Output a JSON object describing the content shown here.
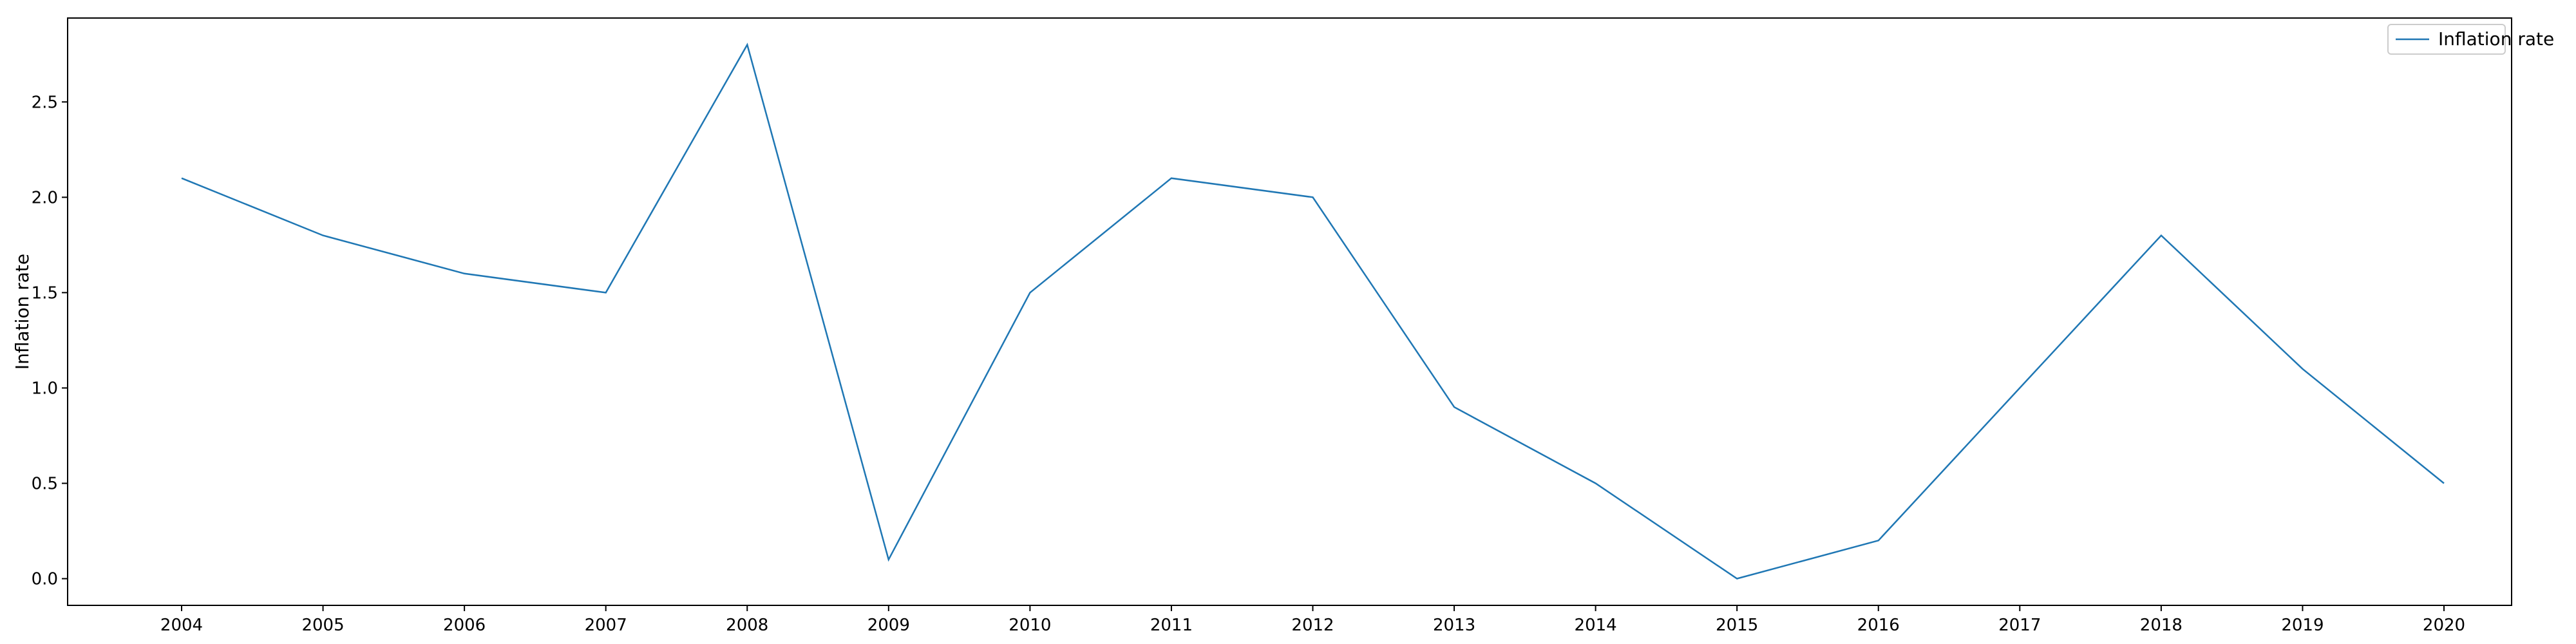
{
  "chart_data": {
    "type": "line",
    "title": "",
    "xlabel": "",
    "ylabel": "Inflation rate",
    "x": [
      "2004",
      "2005",
      "2006",
      "2007",
      "2008",
      "2009",
      "2010",
      "2011",
      "2012",
      "2013",
      "2014",
      "2015",
      "2016",
      "2017",
      "2018",
      "2019",
      "2020"
    ],
    "series": [
      {
        "name": "Inflation rate",
        "color": "#1f77b4",
        "values": [
          2.1,
          1.8,
          1.6,
          1.5,
          2.8,
          0.1,
          1.5,
          2.1,
          2.0,
          0.9,
          0.5,
          0.0,
          0.2,
          1.0,
          1.8,
          1.1,
          0.5
        ]
      }
    ],
    "ylim": [
      -0.14,
      2.94
    ],
    "yticks": [
      "0.0",
      "0.5",
      "1.0",
      "1.5",
      "2.0",
      "2.5"
    ],
    "grid": false,
    "legend_position": "top-right"
  }
}
